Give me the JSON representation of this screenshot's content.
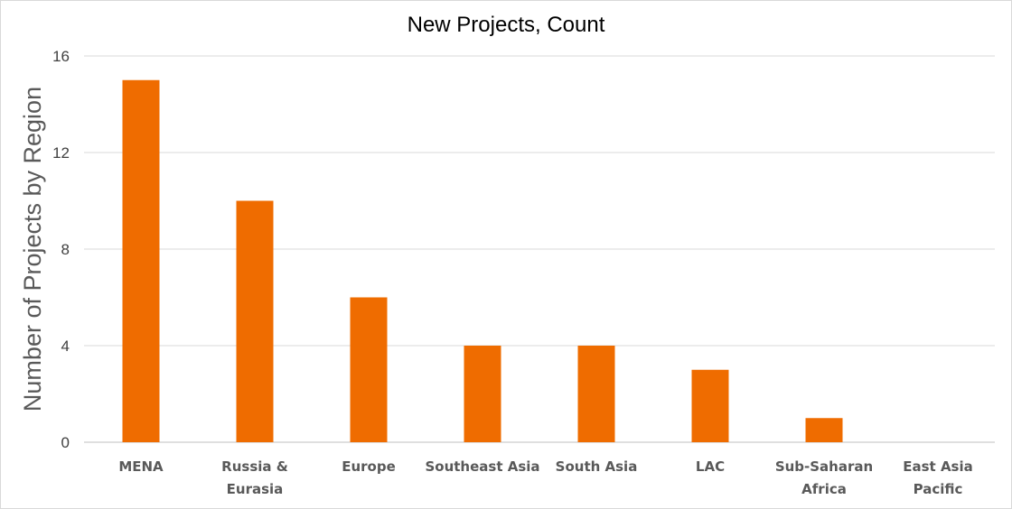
{
  "chart_data": {
    "type": "bar",
    "title": "New Projects, Count",
    "xlabel": "",
    "ylabel": "Number of Projects by Region",
    "categories": [
      [
        "MENA"
      ],
      [
        "Russia &",
        "Eurasia"
      ],
      [
        "Europe"
      ],
      [
        "Southeast Asia"
      ],
      [
        "South Asia"
      ],
      [
        "LAC"
      ],
      [
        "Sub-Saharan",
        "Africa"
      ],
      [
        "East Asia",
        "Pacific"
      ]
    ],
    "values": [
      15,
      10,
      6,
      4,
      4,
      3,
      1,
      0
    ],
    "ylim": [
      0,
      16
    ],
    "yticks": [
      0,
      4,
      8,
      12,
      16
    ],
    "grid": true,
    "legend": "none",
    "bar_color": "#ef6c00"
  }
}
